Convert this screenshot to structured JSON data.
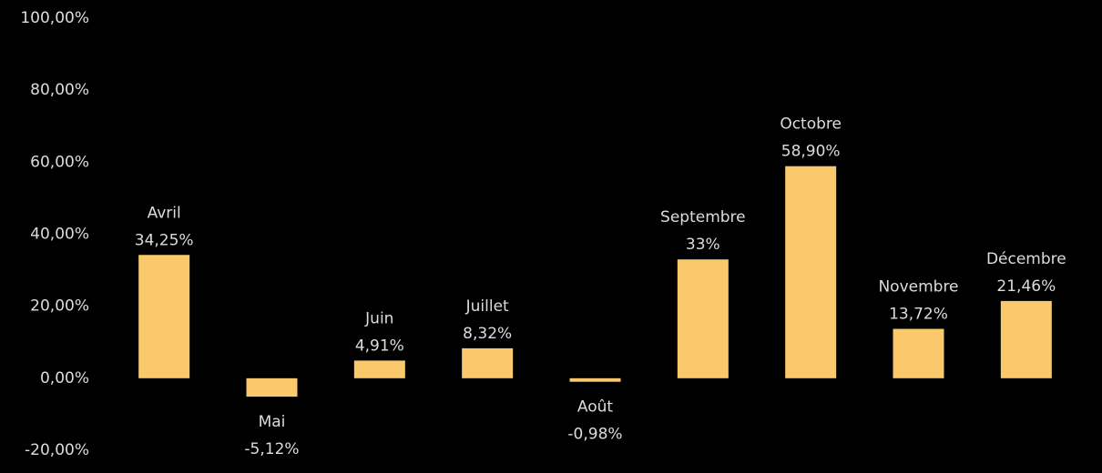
{
  "chart_data": {
    "type": "bar",
    "categories": [
      "Avril",
      "Mai",
      "Juin",
      "Juillet",
      "Août",
      "Septembre",
      "Octobre",
      "Novembre",
      "Décembre"
    ],
    "values": [
      34.25,
      -5.12,
      4.91,
      8.32,
      -0.98,
      33,
      58.9,
      13.72,
      21.46
    ],
    "value_labels": [
      "34,25%",
      "-5,12%",
      "4,91%",
      "8,32%",
      "-0,98%",
      "33%",
      "58,90%",
      "13,72%",
      "21,46%"
    ],
    "color": "#f9c96b",
    "ylim": [
      -20,
      100
    ],
    "yticks": [
      {
        "value": -20,
        "label": "-20,00%"
      },
      {
        "value": 0,
        "label": "0,00%"
      },
      {
        "value": 20,
        "label": "20,00%"
      },
      {
        "value": 40,
        "label": "40,00%"
      },
      {
        "value": 60,
        "label": "60,00%"
      },
      {
        "value": 80,
        "label": "80,00%"
      },
      {
        "value": 100,
        "label": "100,00%"
      }
    ],
    "grid": false
  }
}
